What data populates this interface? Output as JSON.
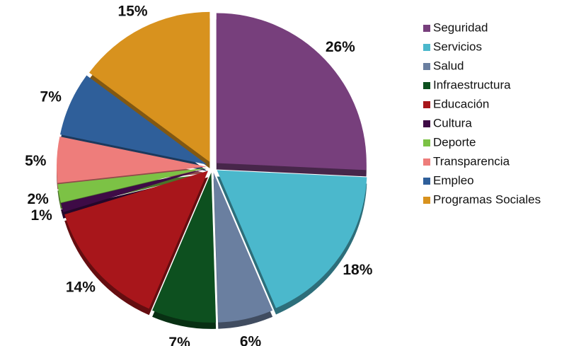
{
  "chart_data": {
    "type": "pie",
    "categories": [
      "Seguridad",
      "Servicios",
      "Salud",
      "Infraestructura",
      "Educación",
      "Cultura",
      "Deporte",
      "Transparencia",
      "Empleo",
      "Programas Sociales"
    ],
    "values": [
      26,
      18,
      6,
      7,
      14,
      1,
      2,
      5,
      7,
      15
    ],
    "value_labels": [
      "26%",
      "18%",
      "6%",
      "7%",
      "14%",
      "1%",
      "2%",
      "5%",
      "7%",
      "15%"
    ],
    "colors": [
      "#773f7c",
      "#4bb8cc",
      "#6a7fa0",
      "#0d501f",
      "#a8161b",
      "#3e0b46",
      "#7cc245",
      "#ee7d7b",
      "#2f5f9a",
      "#d8921e"
    ],
    "legend": "right"
  }
}
